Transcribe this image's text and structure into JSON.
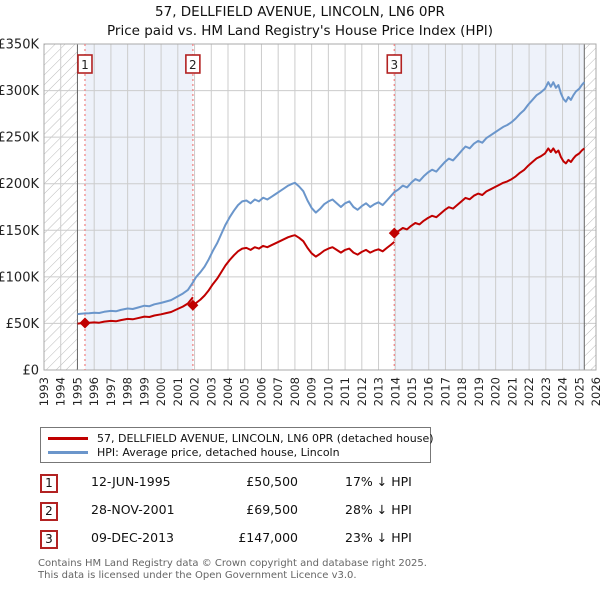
{
  "title": "57, DELLFIELD AVENUE, LINCOLN, LN6 0PR",
  "subtitle": "Price paid vs. HM Land Registry's House Price Index (HPI)",
  "legend": {
    "series1": "57, DELLFIELD AVENUE, LINCOLN, LN6 0PR (detached house)",
    "series2": "HPI: Average price, detached house, Lincoln"
  },
  "transactions": [
    {
      "n": "1",
      "date": "12-JUN-1995",
      "price": "£50,500",
      "hpi_diff": "17% ↓ HPI"
    },
    {
      "n": "2",
      "date": "28-NOV-2001",
      "price": "£69,500",
      "hpi_diff": "28% ↓ HPI"
    },
    {
      "n": "3",
      "date": "09-DEC-2013",
      "price": "£147,000",
      "hpi_diff": "23% ↓ HPI"
    }
  ],
  "footer": {
    "line1": "Contains HM Land Registry data © Crown copyright and database right 2025.",
    "line2": "This data is licensed under the Open Government Licence v3.0."
  },
  "colors": {
    "property_line": "#c00000",
    "hpi_line": "#6b96cb",
    "marker_dotted": "#f08080",
    "marker_box_border": "#b22222",
    "shaded_period": "#eef2fa",
    "grid": "#cccccc",
    "plot_border": "#aaaaaa",
    "hatch_line": "#bbbbbb",
    "data_boundary": "#666666",
    "footer_text": "#666666"
  },
  "chart_data": {
    "type": "line",
    "title": "57, DELLFIELD AVENUE, LINCOLN, LN6 0PR",
    "subtitle": "Price paid vs. HM Land Registry's House Price Index (HPI)",
    "xlim": [
      1993,
      2026
    ],
    "ylim": [
      0,
      350000
    ],
    "units": "GBP, series values stored in thousands",
    "x_tick_labels": [
      "1993",
      "1994",
      "1995",
      "1996",
      "1997",
      "1998",
      "1999",
      "2000",
      "2001",
      "2002",
      "2003",
      "2004",
      "2005",
      "2006",
      "2007",
      "2008",
      "2009",
      "2010",
      "2011",
      "2012",
      "2013",
      "2014",
      "2015",
      "2016",
      "2017",
      "2018",
      "2019",
      "2020",
      "2021",
      "2022",
      "2023",
      "2024",
      "2025",
      "2026"
    ],
    "y_ticks": [
      0,
      50000,
      100000,
      150000,
      200000,
      250000,
      300000,
      350000
    ],
    "y_tick_labels": [
      "£0",
      "£50K",
      "£100K",
      "£150K",
      "£200K",
      "£250K",
      "£300K",
      "£350K"
    ],
    "hatched_periods": [
      [
        1993,
        1995.0
      ],
      [
        2025.3,
        2026
      ]
    ],
    "shaded_periods": [
      [
        1995.45,
        2001.9
      ],
      [
        2013.94,
        2025.3
      ]
    ],
    "series": [
      {
        "name": "HPI: Average price, detached house, Lincoln",
        "color": "#6b96cb",
        "points": [
          [
            1995.0,
            60
          ],
          [
            1995.2,
            60.3
          ],
          [
            1995.45,
            60.8
          ],
          [
            1995.7,
            61
          ],
          [
            1996.0,
            61.5
          ],
          [
            1996.3,
            61.2
          ],
          [
            1996.6,
            62.5
          ],
          [
            1997.0,
            63.5
          ],
          [
            1997.3,
            63
          ],
          [
            1997.6,
            64.5
          ],
          [
            1998.0,
            66
          ],
          [
            1998.3,
            65.5
          ],
          [
            1998.6,
            67
          ],
          [
            1999.0,
            69
          ],
          [
            1999.3,
            68.5
          ],
          [
            1999.6,
            70.5
          ],
          [
            2000.0,
            72
          ],
          [
            2000.3,
            73.5
          ],
          [
            2000.6,
            75
          ],
          [
            2001.0,
            79
          ],
          [
            2001.3,
            82
          ],
          [
            2001.6,
            86
          ],
          [
            2001.9,
            94
          ],
          [
            2002.1,
            100
          ],
          [
            2002.35,
            105
          ],
          [
            2002.6,
            111
          ],
          [
            2002.85,
            119
          ],
          [
            2003.1,
            128
          ],
          [
            2003.35,
            136
          ],
          [
            2003.6,
            146
          ],
          [
            2003.85,
            156
          ],
          [
            2004.1,
            164
          ],
          [
            2004.35,
            171
          ],
          [
            2004.6,
            177
          ],
          [
            2004.85,
            181
          ],
          [
            2005.1,
            182
          ],
          [
            2005.35,
            179
          ],
          [
            2005.6,
            183
          ],
          [
            2005.85,
            181
          ],
          [
            2006.1,
            185
          ],
          [
            2006.35,
            183
          ],
          [
            2006.6,
            186
          ],
          [
            2006.85,
            189
          ],
          [
            2007.1,
            192
          ],
          [
            2007.35,
            195
          ],
          [
            2007.6,
            198
          ],
          [
            2007.85,
            200
          ],
          [
            2008.0,
            201
          ],
          [
            2008.25,
            197
          ],
          [
            2008.5,
            192
          ],
          [
            2008.75,
            182
          ],
          [
            2009.0,
            174
          ],
          [
            2009.25,
            169
          ],
          [
            2009.5,
            173
          ],
          [
            2009.75,
            178
          ],
          [
            2010.0,
            181
          ],
          [
            2010.25,
            183
          ],
          [
            2010.5,
            179
          ],
          [
            2010.75,
            175
          ],
          [
            2011.0,
            179
          ],
          [
            2011.25,
            181
          ],
          [
            2011.5,
            175
          ],
          [
            2011.75,
            172
          ],
          [
            2012.0,
            176
          ],
          [
            2012.25,
            179
          ],
          [
            2012.5,
            175
          ],
          [
            2012.75,
            178
          ],
          [
            2013.0,
            180
          ],
          [
            2013.25,
            177
          ],
          [
            2013.5,
            182
          ],
          [
            2013.75,
            187
          ],
          [
            2013.94,
            191
          ],
          [
            2014.2,
            194
          ],
          [
            2014.45,
            198
          ],
          [
            2014.7,
            196
          ],
          [
            2014.95,
            201
          ],
          [
            2015.2,
            205
          ],
          [
            2015.45,
            203
          ],
          [
            2015.7,
            208
          ],
          [
            2015.95,
            212
          ],
          [
            2016.2,
            215
          ],
          [
            2016.45,
            213
          ],
          [
            2016.7,
            218
          ],
          [
            2016.95,
            223
          ],
          [
            2017.2,
            227
          ],
          [
            2017.45,
            225
          ],
          [
            2017.7,
            230
          ],
          [
            2017.95,
            235
          ],
          [
            2018.2,
            240
          ],
          [
            2018.45,
            238
          ],
          [
            2018.7,
            243
          ],
          [
            2018.95,
            246
          ],
          [
            2019.2,
            244
          ],
          [
            2019.45,
            249
          ],
          [
            2019.7,
            252
          ],
          [
            2019.95,
            255
          ],
          [
            2020.2,
            258
          ],
          [
            2020.45,
            261
          ],
          [
            2020.7,
            263
          ],
          [
            2020.95,
            266
          ],
          [
            2021.2,
            270
          ],
          [
            2021.45,
            275
          ],
          [
            2021.7,
            279
          ],
          [
            2021.95,
            285
          ],
          [
            2022.2,
            290
          ],
          [
            2022.45,
            295
          ],
          [
            2022.7,
            298
          ],
          [
            2022.95,
            302
          ],
          [
            2023.15,
            309
          ],
          [
            2023.3,
            304
          ],
          [
            2023.45,
            309
          ],
          [
            2023.6,
            303
          ],
          [
            2023.75,
            306
          ],
          [
            2023.9,
            297
          ],
          [
            2024.05,
            291
          ],
          [
            2024.2,
            288
          ],
          [
            2024.35,
            293
          ],
          [
            2024.5,
            290
          ],
          [
            2024.65,
            295
          ],
          [
            2024.8,
            299
          ],
          [
            2025.0,
            302
          ],
          [
            2025.15,
            306
          ],
          [
            2025.3,
            309
          ]
        ]
      },
      {
        "name": "57, DELLFIELD AVENUE, LINCOLN, LN6 0PR (detached house)",
        "color": "#c00000",
        "derived": "HPI scaled to anchor purchase prices",
        "anchored_segments": [
          {
            "from": 1995.0,
            "to": 2001.9,
            "ratio": 0.8306
          },
          {
            "from": 2001.9,
            "to": 2013.94,
            "ratio": 0.7202
          },
          {
            "from": 2013.94,
            "to": 2025.3,
            "ratio": 0.77
          }
        ]
      }
    ],
    "purchases": [
      {
        "label": "1",
        "year": 1995.45,
        "price": 50500
      },
      {
        "label": "2",
        "year": 2001.9,
        "price": 69500
      },
      {
        "label": "3",
        "year": 2013.94,
        "price": 147000
      }
    ]
  }
}
